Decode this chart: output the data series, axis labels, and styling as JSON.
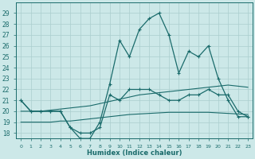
{
  "xlabel": "Humidex (Indice chaleur)",
  "x": [
    0,
    1,
    2,
    3,
    4,
    5,
    6,
    7,
    8,
    9,
    10,
    11,
    12,
    13,
    14,
    15,
    16,
    17,
    18,
    19,
    20,
    21,
    22,
    23
  ],
  "line_top": [
    21.0,
    20.0,
    20.0,
    20.0,
    20.0,
    18.5,
    17.5,
    17.5,
    19.0,
    22.5,
    26.5,
    25.0,
    27.5,
    28.5,
    29.0,
    27.0,
    23.5,
    25.5,
    25.0,
    26.0,
    23.0,
    21.0,
    19.5,
    19.5
  ],
  "line_mid_jagged": [
    21.0,
    20.0,
    20.0,
    20.0,
    20.0,
    18.5,
    18.0,
    18.0,
    18.5,
    21.5,
    21.0,
    22.0,
    22.0,
    22.0,
    21.5,
    21.0,
    21.0,
    21.5,
    21.5,
    22.0,
    21.5,
    21.5,
    20.0,
    19.5
  ],
  "line_avg_high": [
    20.0,
    20.0,
    20.0,
    20.1,
    20.2,
    20.3,
    20.4,
    20.5,
    20.7,
    20.9,
    21.1,
    21.3,
    21.5,
    21.6,
    21.7,
    21.8,
    21.9,
    22.0,
    22.1,
    22.2,
    22.3,
    22.4,
    22.3,
    22.2
  ],
  "line_avg_low": [
    19.0,
    19.0,
    19.0,
    19.0,
    19.1,
    19.1,
    19.2,
    19.3,
    19.4,
    19.5,
    19.6,
    19.7,
    19.75,
    19.8,
    19.85,
    19.9,
    19.9,
    19.9,
    19.9,
    19.9,
    19.85,
    19.8,
    19.75,
    19.7
  ],
  "bg_color": "#cce8e8",
  "grid_color": "#aacece",
  "line_color": "#1a6b6b",
  "ylim": [
    17.5,
    30.0
  ],
  "yticks": [
    18,
    19,
    20,
    21,
    22,
    23,
    24,
    25,
    26,
    27,
    28,
    29
  ],
  "xlim": [
    -0.5,
    23.5
  ]
}
